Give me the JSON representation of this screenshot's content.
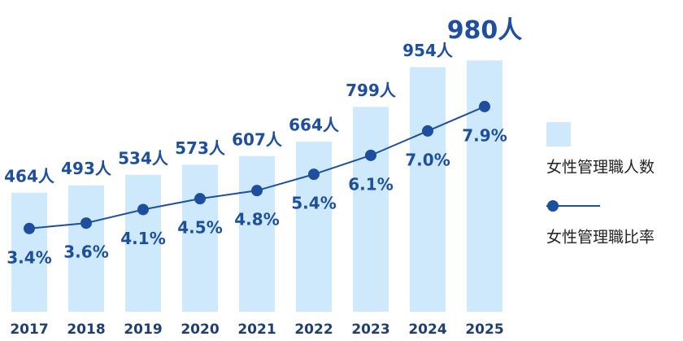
{
  "chart_data": {
    "type": "bar-line",
    "categories": [
      "2017",
      "2018",
      "2019",
      "2020",
      "2021",
      "2022",
      "2023",
      "2024",
      "2025"
    ],
    "series": [
      {
        "name": "女性管理職人数",
        "type": "bar",
        "color": "#cde9fb",
        "values": [
          464,
          493,
          534,
          573,
          607,
          664,
          799,
          954,
          980
        ],
        "value_labels": [
          "464人",
          "493人",
          "534人",
          "573人",
          "607人",
          "664人",
          "799人",
          "954人",
          "980人"
        ]
      },
      {
        "name": "女性管理職比率",
        "type": "line",
        "axis": "y2",
        "color": "#1d4f9e",
        "values": [
          3.4,
          3.6,
          4.1,
          4.5,
          4.8,
          5.4,
          6.1,
          7.0,
          7.9
        ],
        "value_labels": [
          "3.4%",
          "3.6%",
          "4.1%",
          "4.5%",
          "4.8%",
          "5.4%",
          "6.1%",
          "7.0%",
          "7.9%"
        ]
      }
    ],
    "ylim": [
      0,
      1000
    ],
    "y2lim": [
      0,
      10
    ],
    "legend": "right"
  }
}
